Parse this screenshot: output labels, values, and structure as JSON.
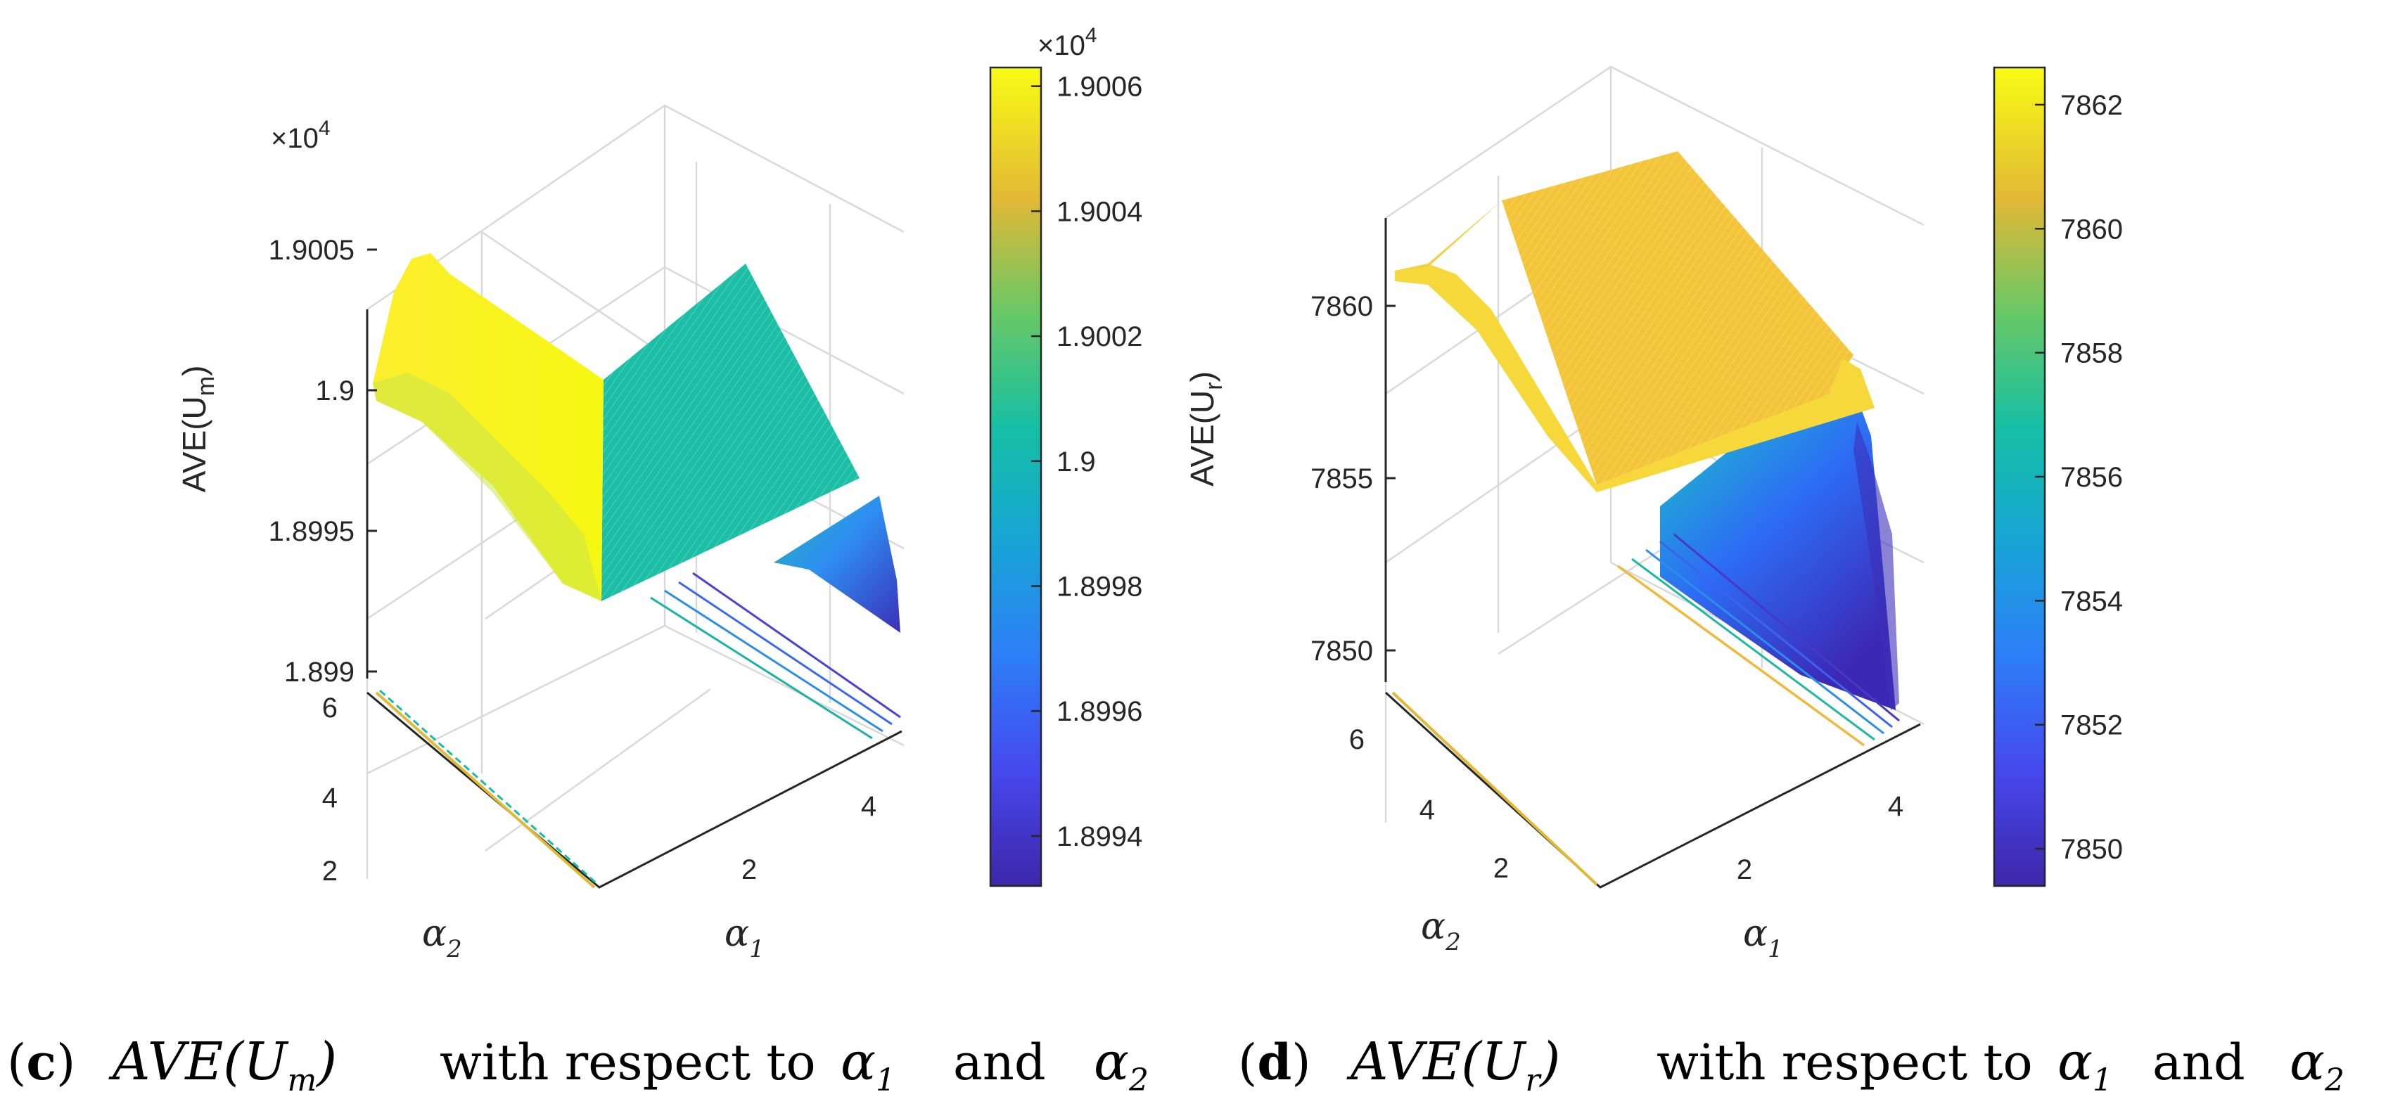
{
  "chart_data": [
    {
      "type": "surface",
      "panel": "c",
      "zlabel_prefix": "AVE(U",
      "zlabel_sub": "m",
      "zlabel_suffix": ")",
      "xlabel_greek": "α",
      "xlabel_sub": "1",
      "ylabel_greek": "α",
      "ylabel_sub": "2",
      "z_exponent": "×10^4",
      "x_ticks": [
        "2",
        "4"
      ],
      "y_ticks": [
        "2",
        "4",
        "6"
      ],
      "z_ticks": [
        "1.899",
        "1.8995",
        "1.9",
        "1.9005"
      ],
      "z_tick_values": [
        18990,
        18995,
        19000,
        19005
      ],
      "colorbar_exponent": "×10^4",
      "colorbar_ticks": [
        "1.8994",
        "1.8996",
        "1.8998",
        "1.9",
        "1.9002",
        "1.9004",
        "1.9006"
      ],
      "colorbar_range": [
        18993.2,
        19006.3
      ],
      "caption": {
        "label": "(c)",
        "formula_main": "AVE(U",
        "formula_sub": "m",
        "formula_end": ")",
        "text1": "with respect to",
        "g1": "α",
        "g1sub": "1",
        "text2": "and",
        "g2": "α",
        "g2sub": "2"
      }
    },
    {
      "type": "surface",
      "panel": "d",
      "zlabel_prefix": "AVE(U",
      "zlabel_sub": "r",
      "zlabel_suffix": ")",
      "xlabel_greek": "α",
      "xlabel_sub": "1",
      "ylabel_greek": "α",
      "ylabel_sub": "2",
      "x_ticks": [
        "2",
        "4"
      ],
      "y_ticks": [
        "2",
        "4",
        "6"
      ],
      "z_ticks": [
        "7850",
        "7855",
        "7860"
      ],
      "z_tick_values": [
        7850,
        7855,
        7860
      ],
      "colorbar_ticks": [
        "7850",
        "7852",
        "7854",
        "7856",
        "7858",
        "7860",
        "7862"
      ],
      "colorbar_range": [
        7849.4,
        7862.6
      ],
      "caption": {
        "label": "(d)",
        "formula_main": "AVE(U",
        "formula_sub": "r",
        "formula_end": ")",
        "text1": "with respect to",
        "g1": "α",
        "g1sub": "1",
        "text2": "and",
        "g2": "α",
        "g2sub": "2"
      }
    }
  ]
}
